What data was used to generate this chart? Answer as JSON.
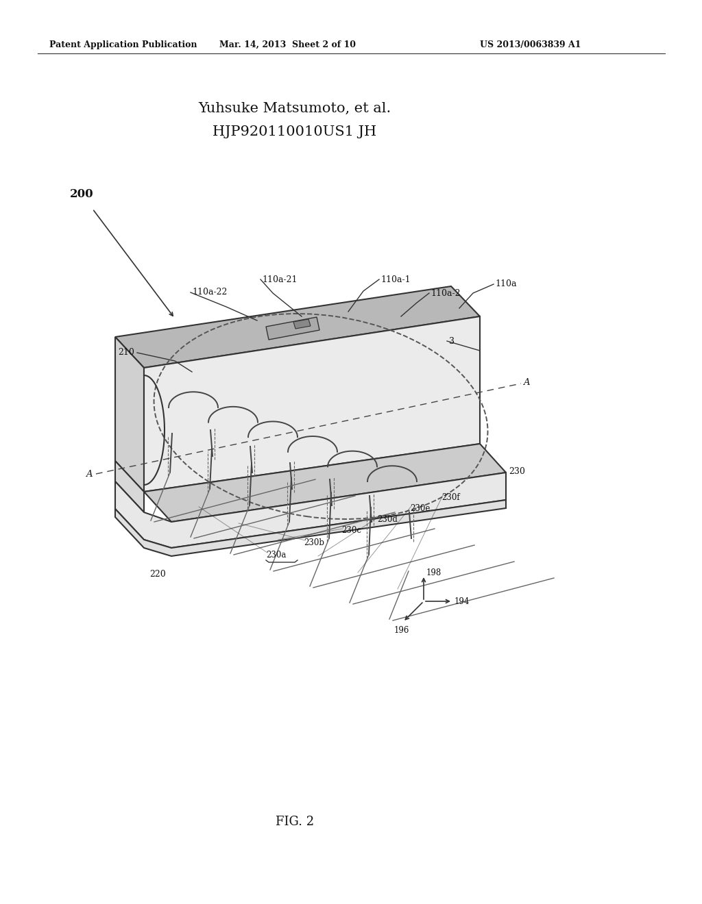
{
  "bg_color": "#ffffff",
  "header_left": "Patent Application Publication",
  "header_mid": "Mar. 14, 2013  Sheet 2 of 10",
  "header_right": "US 2013/0063839 A1",
  "author_line1": "Yuhsuke Matsumoto, et al.",
  "author_line2": "HJP920110010US1 JH",
  "fig_label": "FIG. 2",
  "ref_200": "200",
  "ref_210": "210",
  "ref_220": "220",
  "ref_230": "230",
  "ref_230a": "230a",
  "ref_230b": "230b",
  "ref_230c": "230c",
  "ref_230d": "230d",
  "ref_230e": "230e",
  "ref_230f": "230f",
  "ref_110a": "110a",
  "ref_110a1": "110a-1",
  "ref_110a2": "110a-2",
  "ref_110a21": "110a-21",
  "ref_110a22": "110a-22",
  "ref_3": "3",
  "ref_198": "198",
  "ref_196": "196",
  "ref_194": "194",
  "dark_outline": "#333333",
  "line_color": "#444444"
}
